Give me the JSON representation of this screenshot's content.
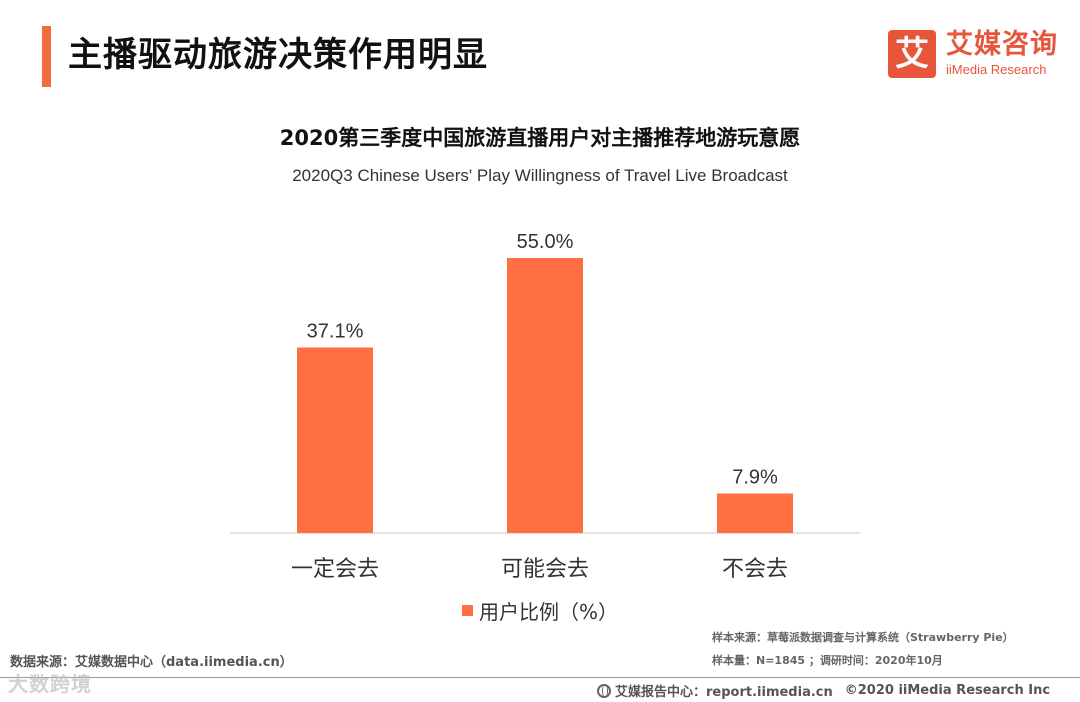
{
  "header": {
    "title": "主播驱动旅游决策作用明显"
  },
  "logo": {
    "mark": "艾",
    "cn": "艾媒咨询",
    "en": "iiMedia Research"
  },
  "chart_data": {
    "type": "bar",
    "title": "2020第三季度中国旅游直播用户对主播推荐地游玩意愿",
    "subtitle": "2020Q3 Chinese Users' Play Willingness of Travel Live Broadcast",
    "categories": [
      "一定会去",
      "可能会去",
      "不会去"
    ],
    "series": [
      {
        "name": "用户比例（%）",
        "values": [
          37.1,
          55.0,
          7.9
        ],
        "color": "#ff6f41"
      }
    ],
    "data_labels": [
      "37.1%",
      "55.0%",
      "7.9%"
    ],
    "ylim": [
      0,
      60
    ],
    "xlabel": "",
    "ylabel": "",
    "grid": false,
    "legend": "bottom"
  },
  "footer": {
    "data_source": "数据来源：艾媒数据中心（data.iimedia.cn）",
    "sample_source": "样本来源：草莓派数据调查与计算系统（Strawberry Pie）",
    "sample_size": "样本量：N=1845 ；调研时间：2020年10月",
    "report_center": "艾媒报告中心：report.iimedia.cn",
    "copyright": "©2020  iiMedia Research  Inc",
    "watermark": "大数跨境",
    "report_icon": "globe-icon"
  }
}
